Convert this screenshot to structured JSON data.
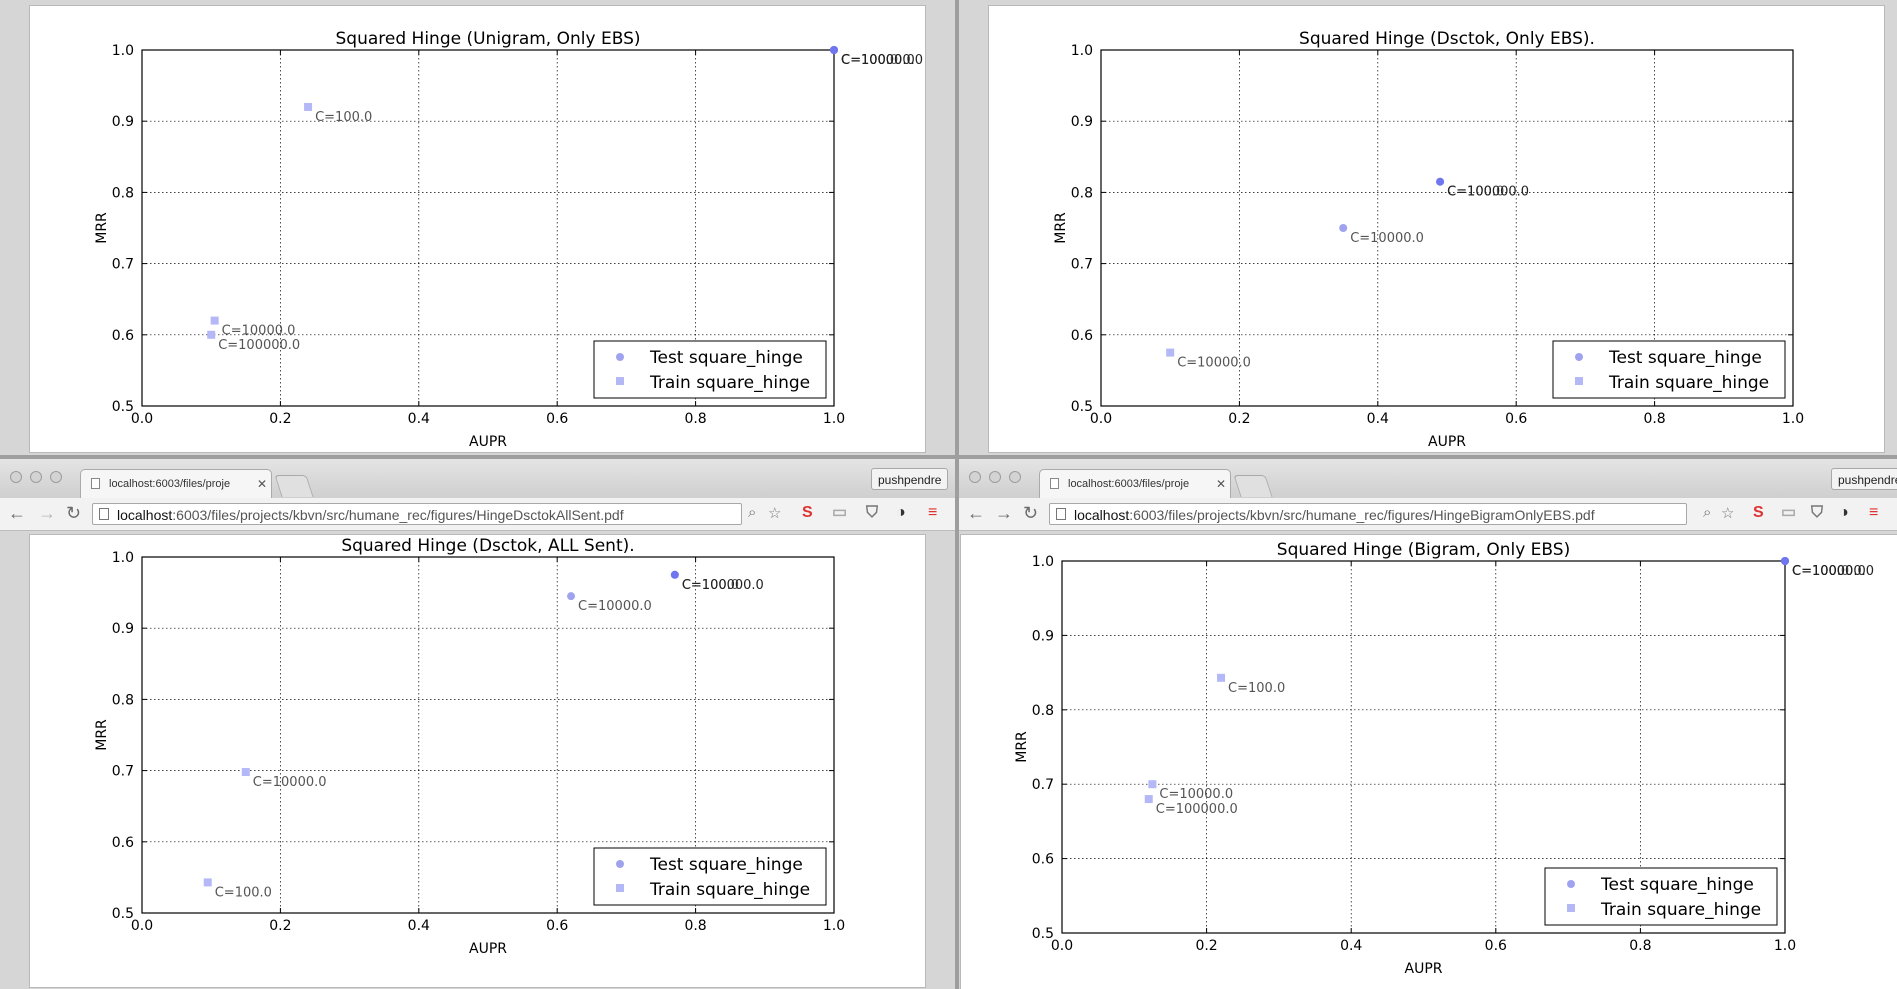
{
  "legend": {
    "test": "Test square_hinge",
    "train": "Train square_hinge"
  },
  "colors": {
    "test": "#9fa3ef",
    "test_dark": "#6f76ef",
    "train": "#b4b8f7",
    "label": "#555555"
  },
  "windows": [
    {
      "url_host": "localhost",
      "url_path": ":6003/files/projects/kbvn/src/humane_rec/figures/HingeDsctokAllSent.pdf",
      "tab_title": "localhost:6003/files/proje",
      "profile": "pushpendre"
    },
    {
      "url_host": "localhost",
      "url_path": ":6003/files/projects/kbvn/src/humane_rec/figures/HingeBigramOnlyEBS.pdf",
      "tab_title": "localhost:6003/files/proje",
      "profile": "pushpendre"
    }
  ],
  "chart_data": [
    {
      "type": "scatter",
      "title": "Squared Hinge (Unigram, Only EBS)",
      "xlabel": "AUPR",
      "ylabel": "MRR",
      "xlim": [
        0.0,
        1.0
      ],
      "ylim": [
        0.5,
        1.0
      ],
      "xticks": [
        "0.0",
        "0.2",
        "0.4",
        "0.6",
        "0.8",
        "1.0"
      ],
      "yticks": [
        "0.5",
        "0.6",
        "0.7",
        "0.8",
        "0.9",
        "1.0"
      ],
      "grid": true,
      "legend_loc": "lower right",
      "series": [
        {
          "name": "Test square_hinge",
          "marker": "circle",
          "points": [
            {
              "x": 1.0,
              "y": 1.0,
              "label": "C=100.0"
            },
            {
              "x": 1.0,
              "y": 1.0,
              "label": "C=10000.0"
            },
            {
              "x": 1.0,
              "y": 1.0,
              "label": "C=100000.0"
            }
          ]
        },
        {
          "name": "Train square_hinge",
          "marker": "square",
          "points": [
            {
              "x": 0.24,
              "y": 0.92,
              "label": "C=100.0"
            },
            {
              "x": 0.105,
              "y": 0.62,
              "label": "C=10000.0"
            },
            {
              "x": 0.1,
              "y": 0.6,
              "label": "C=100000.0"
            }
          ]
        }
      ]
    },
    {
      "type": "scatter",
      "title": "Squared Hinge (Dsctok, Only EBS).",
      "xlabel": "AUPR",
      "ylabel": "MRR",
      "xlim": [
        0.0,
        1.0
      ],
      "ylim": [
        0.5,
        1.0
      ],
      "xticks": [
        "0.0",
        "0.2",
        "0.4",
        "0.6",
        "0.8",
        "1.0"
      ],
      "yticks": [
        "0.5",
        "0.6",
        "0.7",
        "0.8",
        "0.9",
        "1.0"
      ],
      "grid": true,
      "legend_loc": "lower right",
      "series": [
        {
          "name": "Test square_hinge",
          "marker": "circle",
          "points": [
            {
              "x": 0.35,
              "y": 0.75,
              "label": "C=10000.0"
            },
            {
              "x": 0.49,
              "y": 0.815,
              "label": "C=100.0"
            },
            {
              "x": 0.49,
              "y": 0.815,
              "label": "C=100000.0"
            }
          ]
        },
        {
          "name": "Train square_hinge",
          "marker": "square",
          "points": [
            {
              "x": 0.1,
              "y": 0.575,
              "label": "C=10000.0"
            }
          ]
        }
      ]
    },
    {
      "type": "scatter",
      "title": "Squared Hinge (Dsctok, ALL Sent).",
      "xlabel": "AUPR",
      "ylabel": "MRR",
      "xlim": [
        0.0,
        1.0
      ],
      "ylim": [
        0.5,
        1.0
      ],
      "xticks": [
        "0.0",
        "0.2",
        "0.4",
        "0.6",
        "0.8",
        "1.0"
      ],
      "yticks": [
        "0.5",
        "0.6",
        "0.7",
        "0.8",
        "0.9",
        "1.0"
      ],
      "grid": true,
      "legend_loc": "lower right",
      "series": [
        {
          "name": "Test square_hinge",
          "marker": "circle",
          "points": [
            {
              "x": 0.62,
              "y": 0.945,
              "label": "C=10000.0"
            },
            {
              "x": 0.77,
              "y": 0.975,
              "label": "C=100.0"
            },
            {
              "x": 0.77,
              "y": 0.975,
              "label": "C=100000.0"
            }
          ]
        },
        {
          "name": "Train square_hinge",
          "marker": "square",
          "points": [
            {
              "x": 0.15,
              "y": 0.698,
              "label": "C=10000.0"
            },
            {
              "x": 0.095,
              "y": 0.543,
              "label": "C=100.0"
            }
          ]
        }
      ]
    },
    {
      "type": "scatter",
      "title": "Squared Hinge (Bigram, Only EBS)",
      "xlabel": "AUPR",
      "ylabel": "MRR",
      "xlim": [
        0.0,
        1.0
      ],
      "ylim": [
        0.5,
        1.0
      ],
      "xticks": [
        "0.0",
        "0.2",
        "0.4",
        "0.6",
        "0.8",
        "1.0"
      ],
      "yticks": [
        "0.5",
        "0.6",
        "0.7",
        "0.8",
        "0.9",
        "1.0"
      ],
      "grid": true,
      "legend_loc": "lower right",
      "series": [
        {
          "name": "Test square_hinge",
          "marker": "circle",
          "points": [
            {
              "x": 1.0,
              "y": 1.0,
              "label": "C=100.0"
            },
            {
              "x": 1.0,
              "y": 1.0,
              "label": "C=10000.0"
            },
            {
              "x": 1.0,
              "y": 1.0,
              "label": "C=100000.0"
            }
          ]
        },
        {
          "name": "Train square_hinge",
          "marker": "square",
          "points": [
            {
              "x": 0.22,
              "y": 0.843,
              "label": "C=100.0"
            },
            {
              "x": 0.125,
              "y": 0.7,
              "label": "C=10000.0"
            },
            {
              "x": 0.12,
              "y": 0.68,
              "label": "C=100000.0"
            }
          ]
        }
      ]
    }
  ]
}
